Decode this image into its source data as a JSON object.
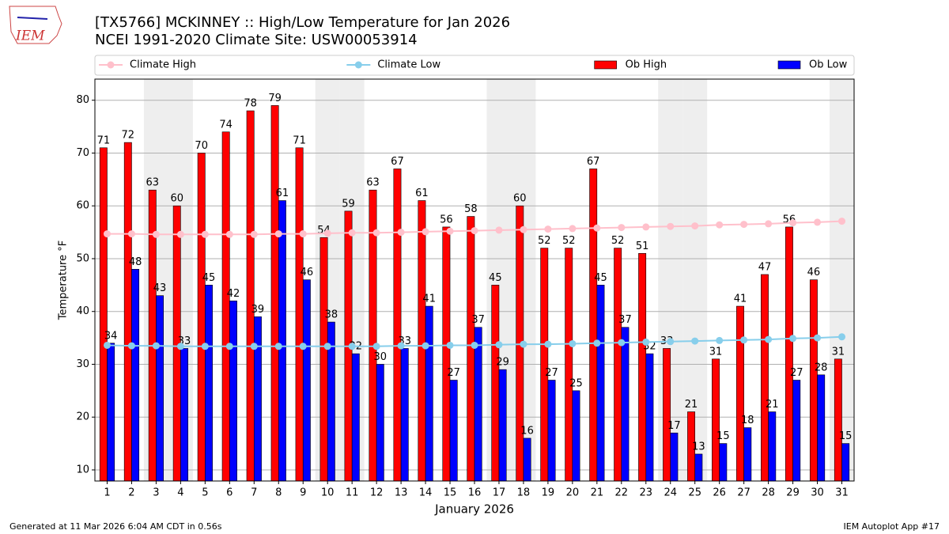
{
  "logo_text": "IEM",
  "footer_left": "Generated at 11 Mar 2026 6:04 AM CDT in 0.56s",
  "footer_right": "IEM Autoplot App #17",
  "chart_data": {
    "type": "bar",
    "title": "[TX5766] MCKINNEY :: High/Low Temperature for Jan 2026",
    "subtitle": "NCEI 1991-2020 Climate Site: USW00053914",
    "xlabel": "January 2026",
    "ylabel": "Temperature °F",
    "x": [
      1,
      2,
      3,
      4,
      5,
      6,
      7,
      8,
      9,
      10,
      11,
      12,
      13,
      14,
      15,
      16,
      17,
      18,
      19,
      20,
      21,
      22,
      23,
      24,
      25,
      26,
      27,
      28,
      29,
      30,
      31
    ],
    "xlim": [
      0.5,
      31.5
    ],
    "ylim": [
      7.9,
      84
    ],
    "yticks": [
      10,
      20,
      30,
      40,
      50,
      60,
      70,
      80
    ],
    "grid": true,
    "shaded_days": [
      3,
      4,
      10,
      11,
      17,
      18,
      24,
      25,
      31
    ],
    "series": [
      {
        "name": "Climate High",
        "type": "line",
        "color": "#ffc0cb",
        "values": [
          54.7,
          54.7,
          54.6,
          54.6,
          54.6,
          54.6,
          54.6,
          54.7,
          54.7,
          54.8,
          54.9,
          54.9,
          55.0,
          55.1,
          55.2,
          55.3,
          55.4,
          55.5,
          55.6,
          55.7,
          55.8,
          55.9,
          56.0,
          56.1,
          56.2,
          56.4,
          56.5,
          56.6,
          56.8,
          56.9,
          57.1
        ]
      },
      {
        "name": "Climate Low",
        "type": "line",
        "color": "#87ceeb",
        "values": [
          33.6,
          33.5,
          33.5,
          33.4,
          33.4,
          33.4,
          33.4,
          33.4,
          33.4,
          33.4,
          33.4,
          33.4,
          33.5,
          33.5,
          33.6,
          33.6,
          33.7,
          33.8,
          33.8,
          33.9,
          34.0,
          34.1,
          34.2,
          34.3,
          34.4,
          34.5,
          34.6,
          34.7,
          34.9,
          35.0,
          35.2
        ]
      },
      {
        "name": "Ob High",
        "type": "bar",
        "color": "#ff0000",
        "values": [
          71,
          72,
          63,
          60,
          70,
          74,
          78,
          79,
          71,
          54,
          59,
          63,
          67,
          61,
          56,
          58,
          45,
          60,
          52,
          52,
          67,
          52,
          51,
          33,
          21,
          31,
          41,
          47,
          56,
          46,
          31
        ]
      },
      {
        "name": "Ob Low",
        "type": "bar",
        "color": "#0000ff",
        "values": [
          34,
          48,
          43,
          33,
          45,
          42,
          39,
          61,
          46,
          38,
          32,
          30,
          33,
          41,
          27,
          37,
          29,
          16,
          27,
          25,
          45,
          37,
          32,
          17,
          13,
          15,
          18,
          21,
          27,
          28,
          15
        ]
      }
    ]
  }
}
